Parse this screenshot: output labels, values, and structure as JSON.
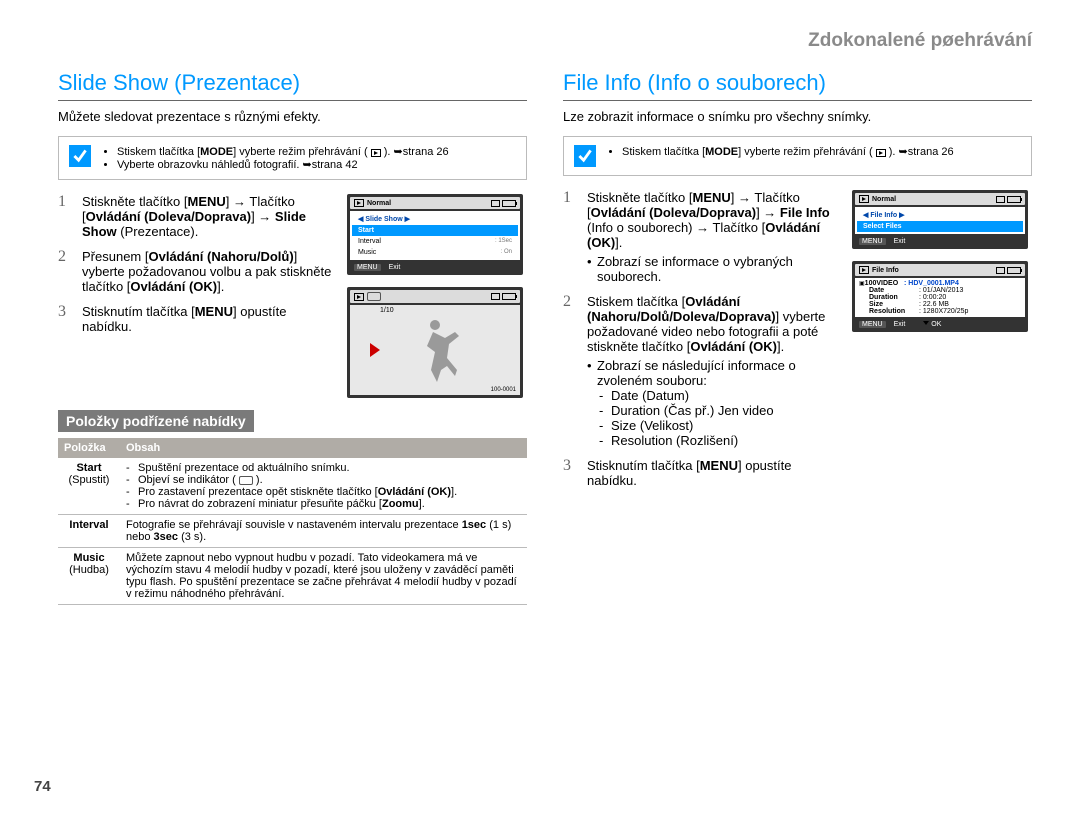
{
  "breadcrumb": "Zdokonalené pøehrávání",
  "page_num": "74",
  "left": {
    "heading": "Slide Show (Prezentace)",
    "intro": "Můžete sledovat prezentace s různými efekty.",
    "note": {
      "items": [
        "Stiskem tlačítka [<b>MODE</b>] vyberte režim přehrávání ( <span class='ico-play'><span class='tri'></span></span> ). ➥strana 26",
        "Vyberte obrazovku náhledů fotografií. ➥strana 42"
      ]
    },
    "steps": [
      {
        "n": "1",
        "html": "Stiskněte tlačítko [<b>MENU</b>] → Tlačítko [<b>Ovládání (Doleva/Doprava)</b>] → <b>Slide Show</b> (Prezentace)."
      },
      {
        "n": "2",
        "html": "Přesunem [<b>Ovládání (Nahoru/Dolů)</b>] vyberte požadovanou volbu a pak stiskněte tlačítko [<b>Ovládání (OK)</b>]."
      },
      {
        "n": "3",
        "html": "Stisknutím tlačítka [<b>MENU</b>] opustíte nabídku."
      }
    ],
    "lcd1": {
      "top": "Normal",
      "title": "Slide Show",
      "rows": [
        {
          "l": "Start",
          "r": "",
          "sel": true
        },
        {
          "l": "Interval",
          "r": "1Sec"
        },
        {
          "l": "Music",
          "r": "On"
        }
      ],
      "exit": "Exit"
    },
    "lcd2": {
      "count": "1/10",
      "filename": "100-0001"
    },
    "subhead": "Položky podřízené nabídky",
    "table": {
      "h1": "Položka",
      "h2": "Obsah",
      "rows": [
        {
          "k": "Start",
          "ks": "(Spustit)",
          "v": "<ul><li>Spuštění prezentace od aktuálního snímku.</li><li>Objeví se indikátor ( <span class='ico-ind'></span> ).</li><li>Pro zastavení prezentace opět stiskněte tlačítko [<b>Ovládání (OK)</b>].</li><li>Pro návrat do zobrazení miniatur přesuňte páčku [<b>Zoomu</b>].</li></ul>"
        },
        {
          "k": "Interval",
          "ks": "",
          "v": "Fotografie se přehrávají souvisle v nastaveném intervalu prezentace <b>1sec</b> (1 s) nebo <b>3sec</b> (3 s)."
        },
        {
          "k": "Music",
          "ks": "(Hudba)",
          "v": "Můžete zapnout nebo vypnout hudbu v pozadí. Tato videokamera má ve výchozím stavu 4 melodií hudby v pozadí, které jsou uloženy v zaváděcí paměti typu flash. Po spuštění prezentace se začne přehrávat 4 melodií hudby v pozadí v režimu náhodného přehrávání."
        }
      ]
    }
  },
  "right": {
    "heading": "File Info (Info o souborech)",
    "intro": "Lze zobrazit informace o snímku pro všechny snímky.",
    "note": {
      "items": [
        "Stiskem tlačítka [<b>MODE</b>] vyberte režim přehrávání ( <span class='ico-play'><span class='tri'></span></span> ). ➥strana 26"
      ]
    },
    "steps": [
      {
        "n": "1",
        "html": "Stiskněte tlačítko [<b>MENU</b>] → Tlačítko [<b>Ovládání (Doleva/Doprava)</b>] → <b>File Info</b> (Info o souborech) → Tlačítko [<b>Ovládání (OK)</b>].",
        "sub": [
          "Zobrazí se informace o vybraných souborech."
        ]
      },
      {
        "n": "2",
        "html": "Stiskem tlačítka [<b>Ovládání (Nahoru/Dolů/Doleva/Doprava)</b>] vyberte požadované video nebo fotografii a poté stiskněte tlačítko [<b>Ovládání (OK)</b>].",
        "sub": [
          "Zobrazí se následující informace o zvoleném souboru:"
        ],
        "sub2": [
          "Date (Datum)",
          "Duration (Čas př.) Jen video",
          "Size (Velikost)",
          "Resolution (Rozlišení)"
        ]
      },
      {
        "n": "3",
        "html": "Stisknutím tlačítka [<b>MENU</b>] opustíte nabídku."
      }
    ],
    "lcd1": {
      "top": "Normal",
      "title": "File Info",
      "rows": [
        {
          "l": "Select Files",
          "r": "",
          "sel": true
        }
      ],
      "exit": "Exit"
    },
    "lcd2": {
      "top": "File Info",
      "folder": "100VIDEO",
      "file": "HDV_0001.MP4",
      "rows": [
        {
          "k": "Date",
          "v": "01/JAN/2013"
        },
        {
          "k": "Duration",
          "v": "0:00:20"
        },
        {
          "k": "Size",
          "v": "22.6 MB"
        },
        {
          "k": "Resolution",
          "v": "1280X720/25p"
        }
      ],
      "exit": "Exit",
      "ok": "OK"
    }
  }
}
